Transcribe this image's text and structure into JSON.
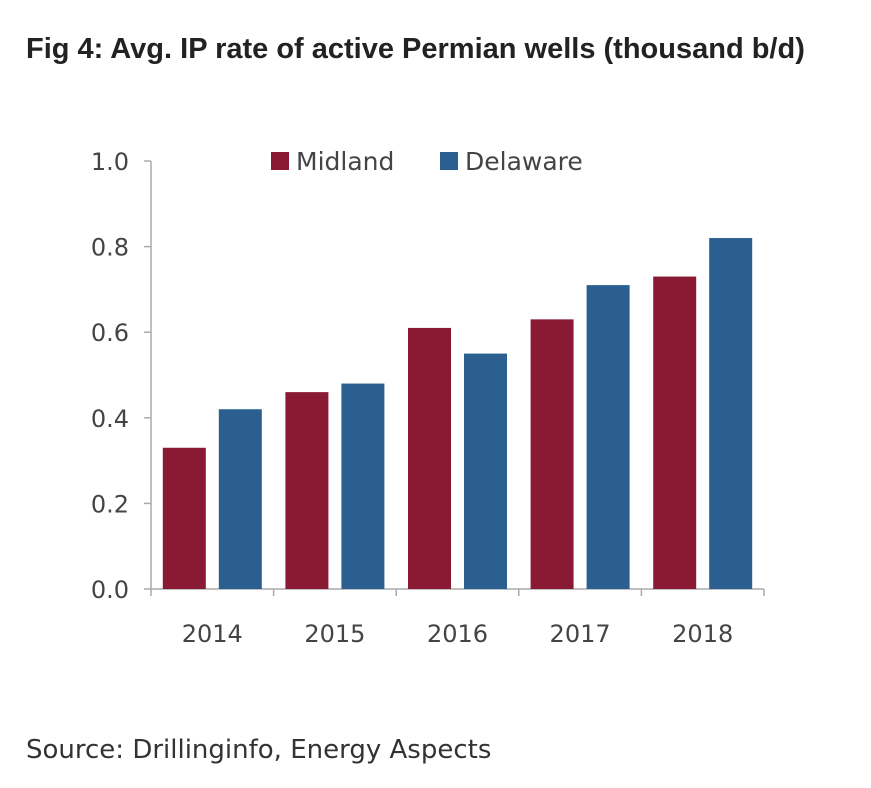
{
  "title": "Fig 4: Avg. IP rate of active Permian wells (thousand b/d)",
  "source": "Source: Drillinginfo, Energy Aspects",
  "colors": {
    "midland": "#8a1a33",
    "delaware": "#2a5f8f",
    "axis": "#aaaaaa"
  },
  "chart_data": {
    "type": "bar",
    "categories": [
      "2014",
      "2015",
      "2016",
      "2017",
      "2018"
    ],
    "series": [
      {
        "name": "Midland",
        "values": [
          0.33,
          0.46,
          0.61,
          0.63,
          0.73
        ]
      },
      {
        "name": "Delaware",
        "values": [
          0.42,
          0.48,
          0.55,
          0.71,
          0.82
        ]
      }
    ],
    "ylim": [
      0,
      1.0
    ],
    "yticks": [
      "0.0",
      "0.2",
      "0.4",
      "0.6",
      "0.8",
      "1.0"
    ],
    "legend_position": "top",
    "grid": false
  }
}
